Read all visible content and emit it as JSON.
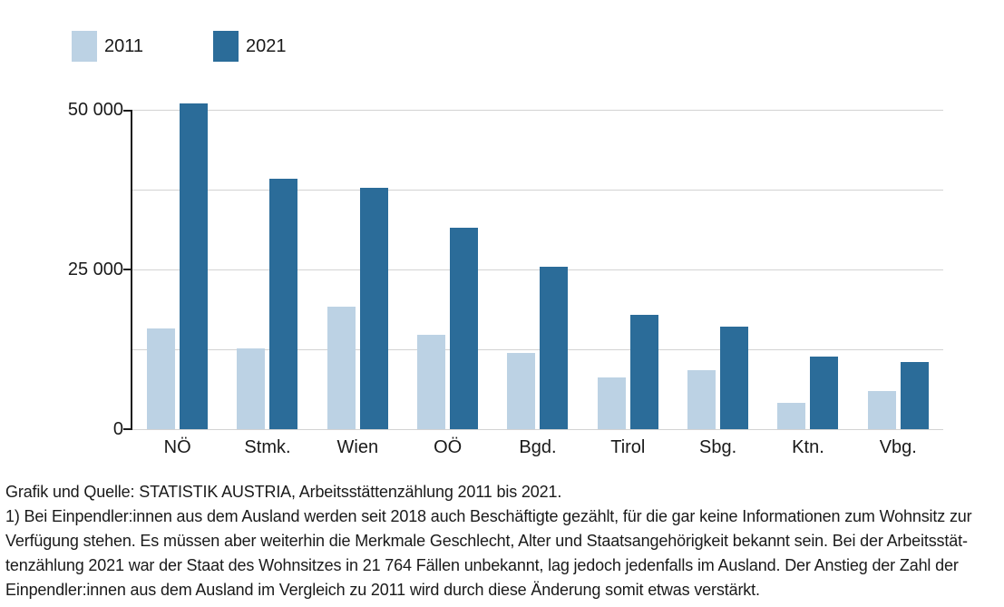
{
  "chart_data": {
    "type": "bar",
    "categories": [
      "NÖ",
      "Stmk.",
      "Wien",
      "OÖ",
      "Bgd.",
      "Tirol",
      "Sbg.",
      "Ktn.",
      "Vbg."
    ],
    "series": [
      {
        "name": "2011",
        "color": "#bcd2e4",
        "values": [
          15800,
          12600,
          19200,
          14800,
          11900,
          8100,
          9300,
          4100,
          6000
        ]
      },
      {
        "name": "2021",
        "color": "#2b6c99",
        "values": [
          51000,
          39200,
          37800,
          31500,
          25400,
          17900,
          16100,
          11400,
          10500
        ]
      }
    ],
    "title": "",
    "xlabel": "",
    "ylabel": "",
    "ylim": [
      0,
      50000
    ],
    "gridline_step": 12500,
    "grid": true,
    "legend_position": "top-left",
    "yticks": [
      {
        "value": 0,
        "label": "0"
      },
      {
        "value": 25000,
        "label": "25 000"
      },
      {
        "value": 50000,
        "label": "50 000"
      }
    ],
    "colors": {
      "grid": "#d3d3d3",
      "axis": "#1a1a1a",
      "text": "#1a1a1a"
    }
  },
  "footer": {
    "source_line": "Grafik und Quelle: STATISTIK AUSTRIA, Arbeitsstättenzählung 2011 bis 2021.",
    "note_lines": [
      "1) Bei Einpendler:innen aus dem Ausland werden seit 2018 auch Beschäftigte gezählt, für die gar keine Informationen zum Wohnsitz zur",
      "Verfügung stehen. Es müssen aber weiterhin die Merkmale Geschlecht, Alter und Staatsangehörigkeit bekannt sein. Bei der Arbeitsstät-",
      "tenzählung 2021 war der Staat des Wohnsitzes in 21 764 Fällen unbekannt, lag jedoch jedenfalls im Ausland. Der Anstieg der Zahl der",
      "Einpendler:innen aus dem Ausland im Vergleich zu 2011 wird durch diese Änderung somit etwas verstärkt."
    ]
  }
}
